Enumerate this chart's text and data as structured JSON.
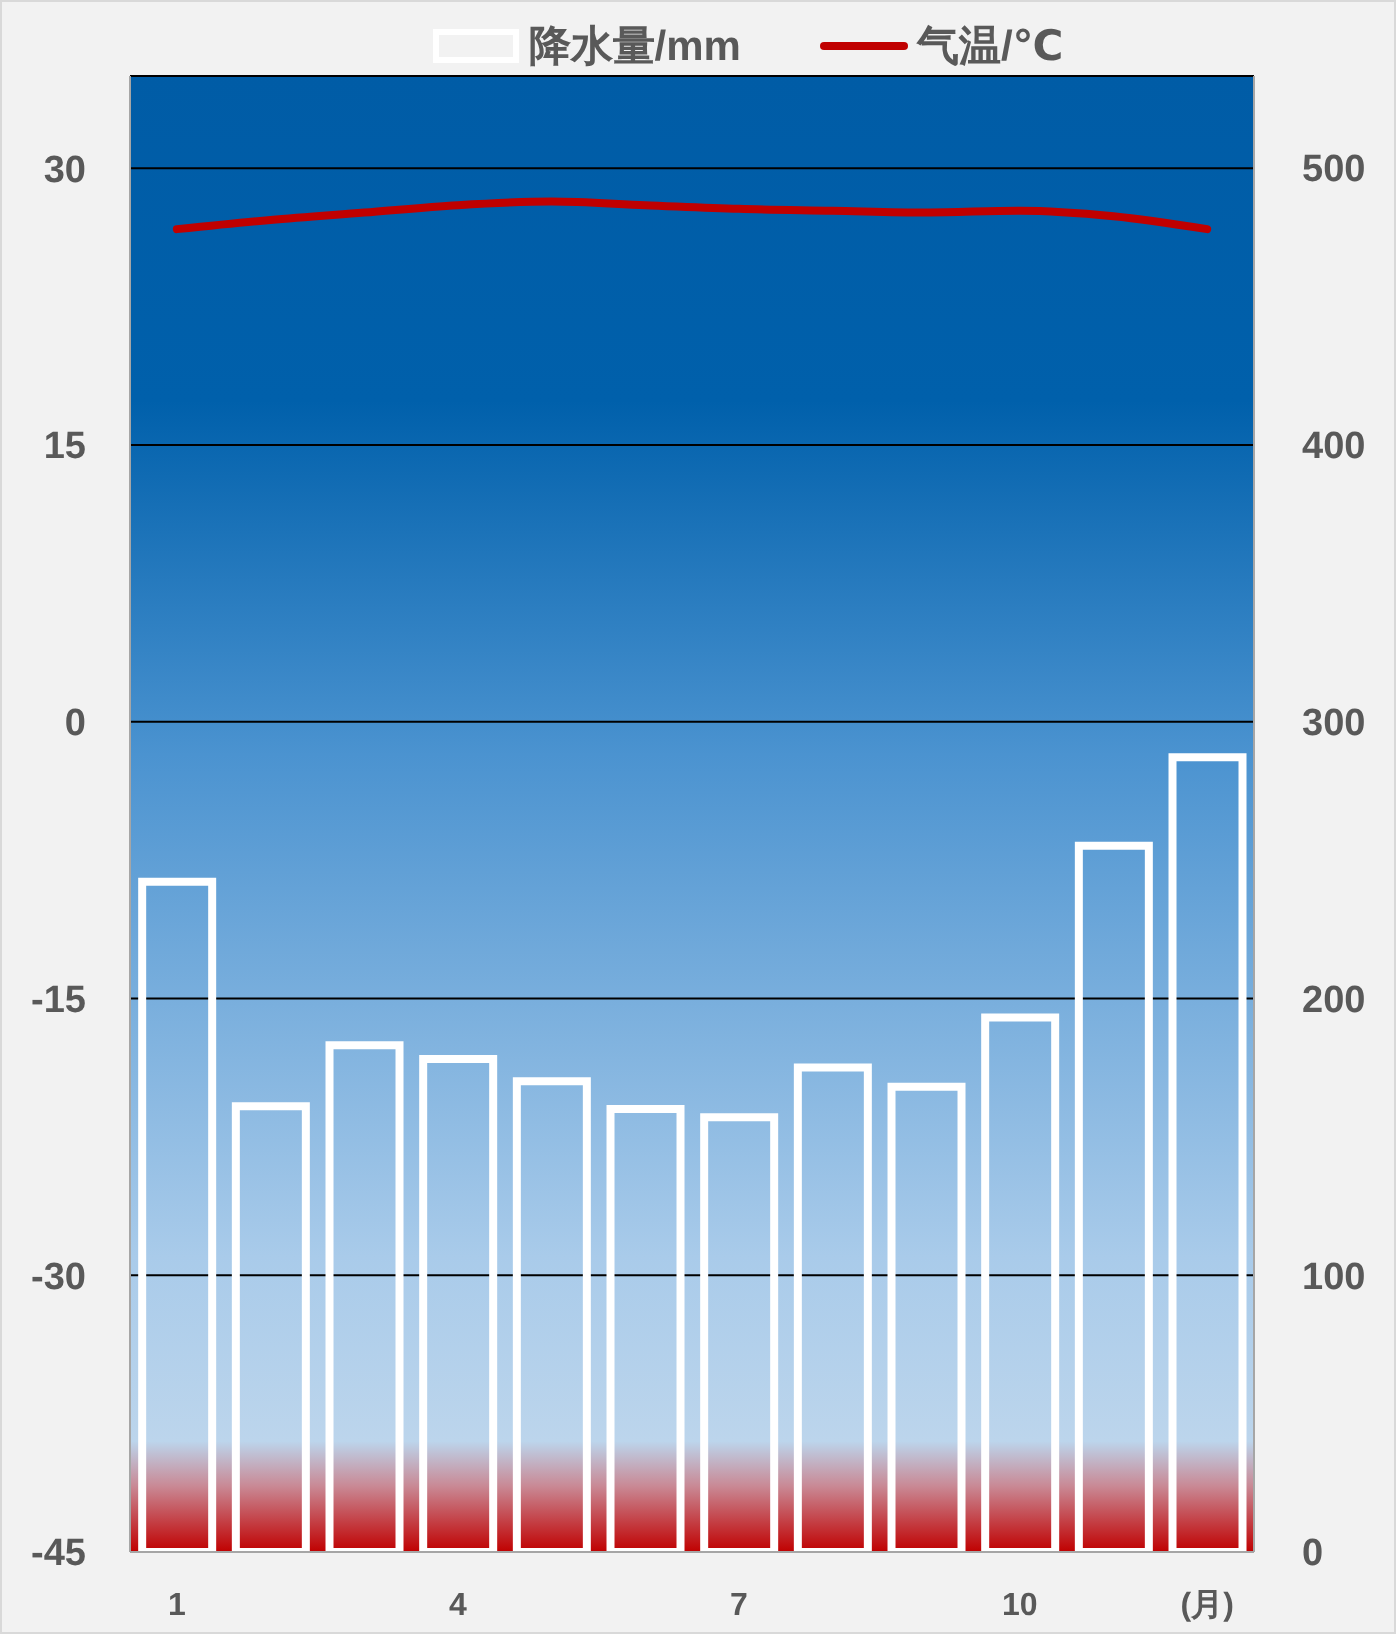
{
  "chart_data": {
    "type": "bar",
    "categories": [
      "1",
      null,
      null,
      "4",
      null,
      null,
      "7",
      null,
      null,
      "10",
      null,
      null
    ],
    "xlabel": "(月)",
    "series": [
      {
        "name": "降水量/mm",
        "axis": "y2",
        "color": "#ffffff",
        "values": [
          242,
          161,
          183,
          178,
          170,
          160,
          157,
          175,
          168,
          193,
          255,
          287
        ]
      },
      {
        "name": "气温/℃",
        "type": "line",
        "color": "#c00000",
        "values": [
          26.7,
          27.2,
          27.6,
          28.0,
          28.2,
          28.0,
          27.8,
          27.7,
          27.6,
          27.7,
          27.4,
          26.7
        ]
      }
    ],
    "ylim": [
      -45,
      35
    ],
    "yticks": [
      -45,
      -30,
      -15,
      0,
      15,
      30
    ],
    "y2lim": [
      0,
      533
    ],
    "y2ticks": [
      0,
      100,
      200,
      300,
      400,
      500
    ],
    "grid": "y",
    "legend": "top",
    "marker": "none",
    "line_style": "solid"
  }
}
